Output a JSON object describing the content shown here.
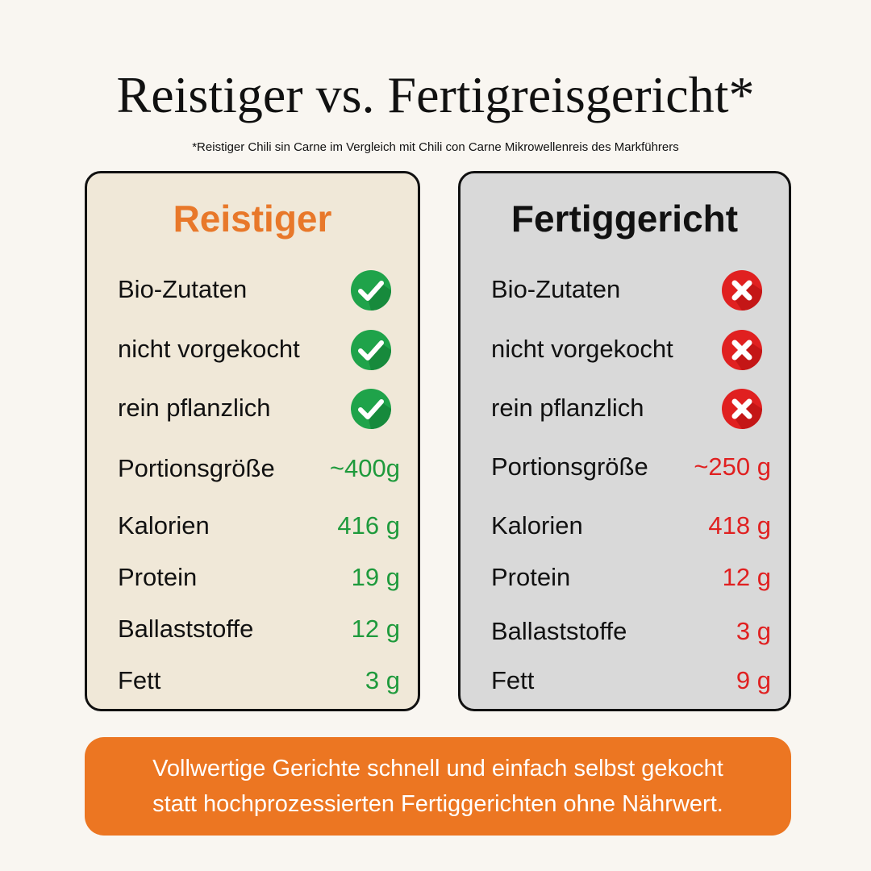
{
  "title": "Reistiger vs. Fertigreisgericht*",
  "subtitle": "*Reistiger Chili sin Carne im Vergleich mit Chili con Carne Mikrowellenreis des Markführers",
  "cards": [
    {
      "heading": "Reistiger",
      "features": [
        "Bio-Zutaten",
        "nicht vorgekocht",
        "rein pflanzlich"
      ],
      "nutrition": [
        {
          "label": "Portionsgröße",
          "value": "~400g"
        },
        {
          "label": "Kalorien",
          "value": "416 g"
        },
        {
          "label": "Protein",
          "value": "19 g"
        },
        {
          "label": "Ballaststoffe",
          "value": "12 g"
        },
        {
          "label": "Fett",
          "value": "3 g"
        }
      ]
    },
    {
      "heading": "Fertiggericht",
      "features": [
        "Bio-Zutaten",
        "nicht vorgekocht",
        "rein pflanzlich"
      ],
      "nutrition": [
        {
          "label": "Portionsgröße",
          "value": "~250 g"
        },
        {
          "label": "Kalorien",
          "value": "418 g"
        },
        {
          "label": "Protein",
          "value": "12 g"
        },
        {
          "label": "Ballaststoffe",
          "value": "3 g"
        },
        {
          "label": "Fett",
          "value": "9 g"
        }
      ]
    }
  ],
  "footer": [
    "Vollwertige Gerichte schnell und einfach selbst gekocht",
    "statt hochprozessierten Fertiggerichten ohne Nährwert."
  ]
}
